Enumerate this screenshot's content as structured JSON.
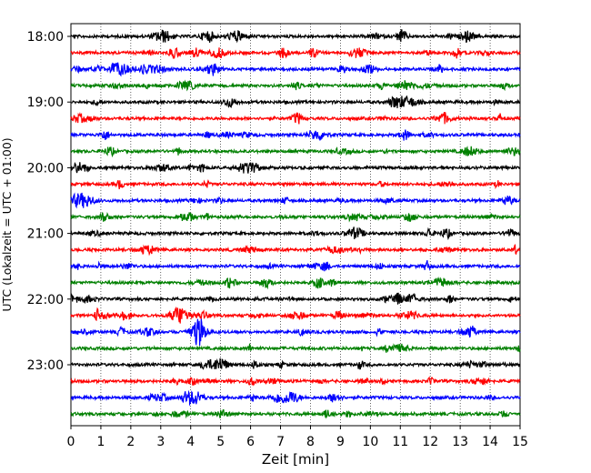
{
  "chart_data": {
    "type": "line",
    "title": "",
    "xlabel": "Zeit  [min]",
    "ylabel": "UTC (Lokalzeit = UTC + 01:00)",
    "xlim": [
      0,
      15
    ],
    "x_ticks": [
      "0",
      "1",
      "2",
      "3",
      "4",
      "5",
      "6",
      "7",
      "8",
      "9",
      "10",
      "11",
      "12",
      "13",
      "14",
      "15"
    ],
    "y_tick_labels": [
      "18:00",
      "19:00",
      "20:00",
      "21:00",
      "22:00",
      "23:00"
    ],
    "grid": "vertical dotted",
    "trace_interval_minutes": 15,
    "color_cycle": [
      "#000000",
      "#ff0000",
      "#0000ff",
      "#008000"
    ],
    "rows": [
      "18:00",
      "18:15",
      "18:30",
      "18:45",
      "19:00",
      "19:15",
      "19:30",
      "19:45",
      "20:00",
      "20:15",
      "20:30",
      "20:45",
      "21:00",
      "21:15",
      "21:30",
      "21:45",
      "22:00",
      "22:15",
      "22:30",
      "22:45",
      "23:00",
      "23:15",
      "23:30",
      "23:45"
    ]
  }
}
